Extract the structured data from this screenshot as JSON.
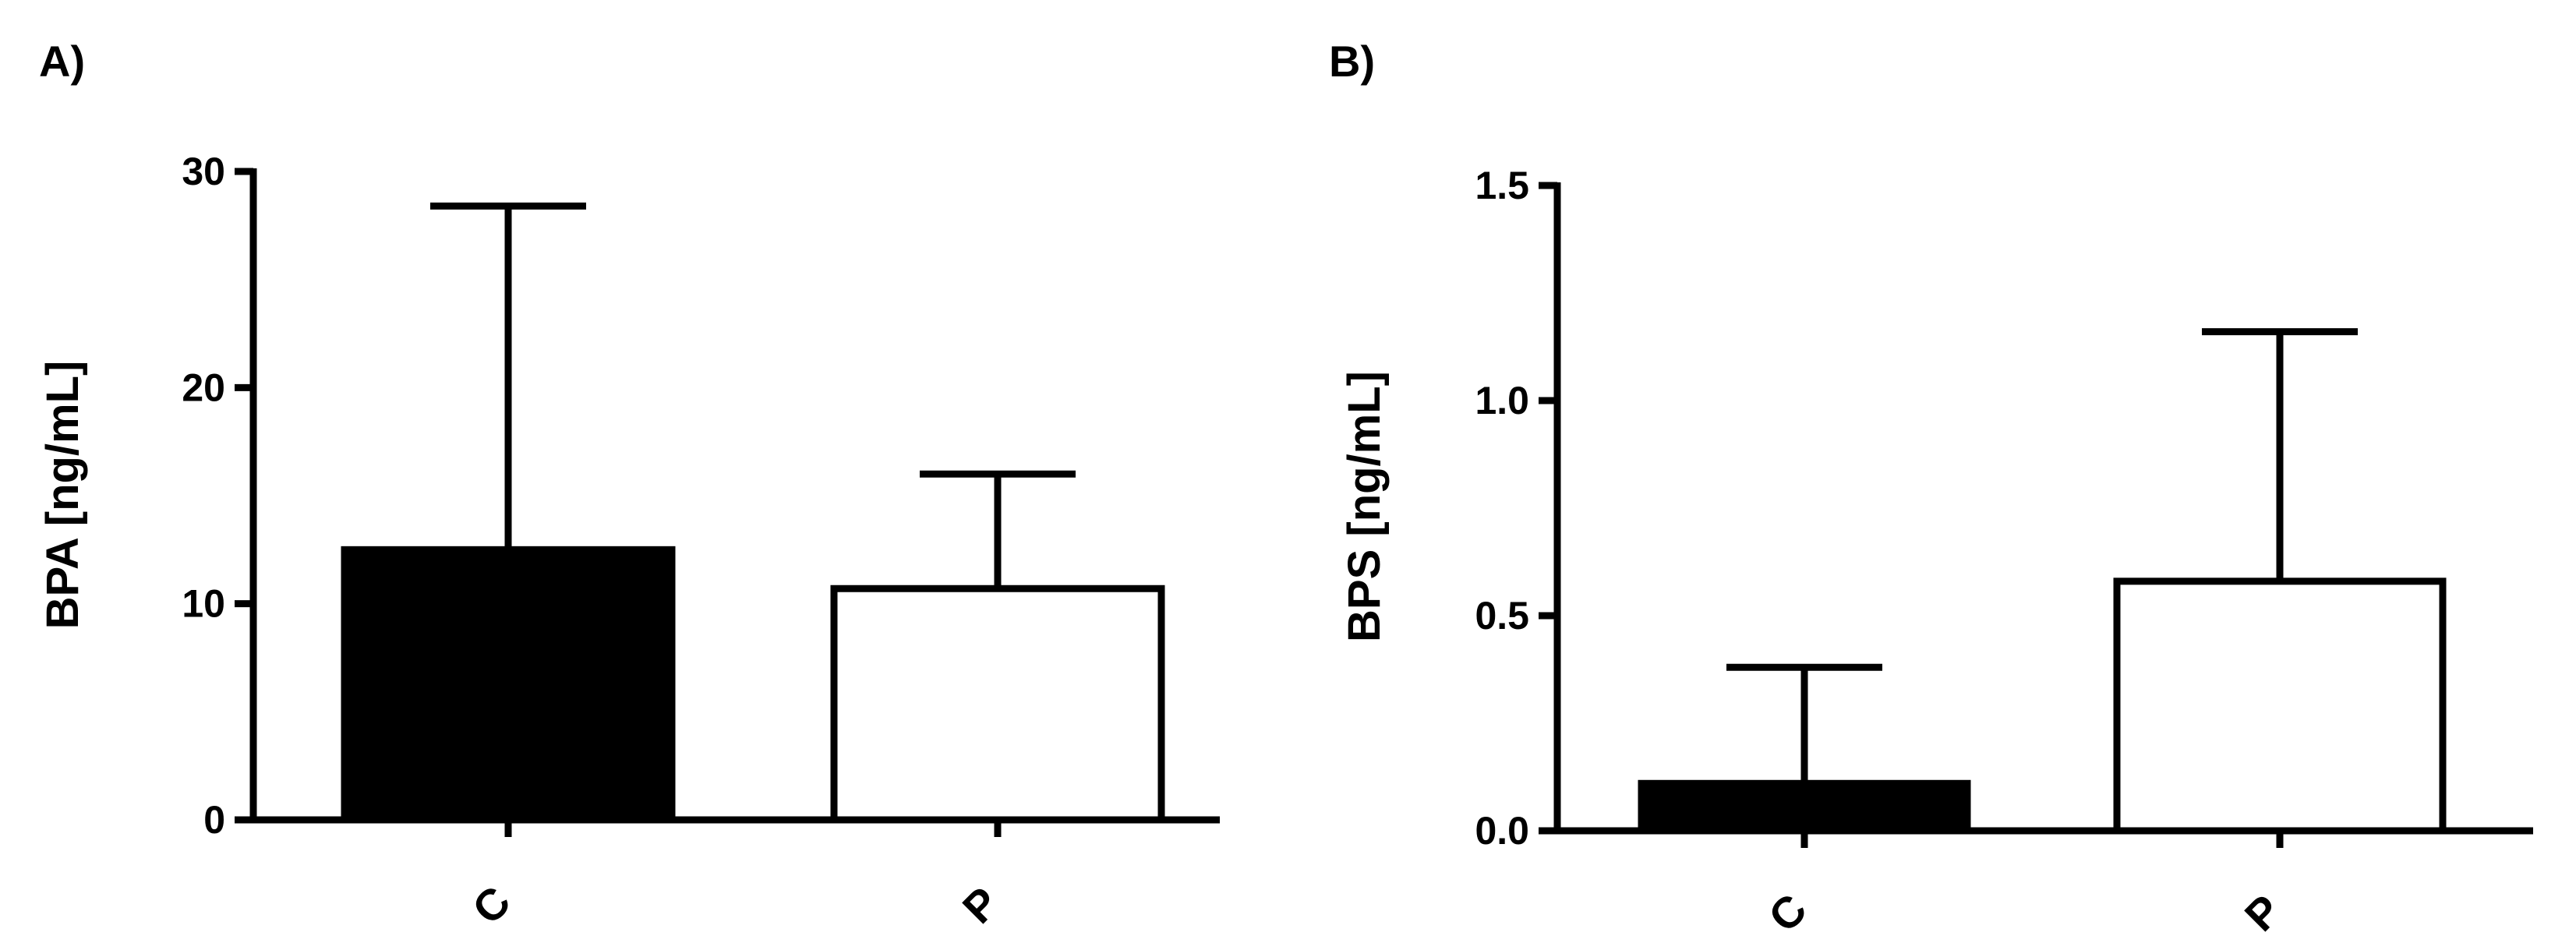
{
  "chart_data": [
    {
      "type": "bar",
      "panel_label": "A)",
      "ylabel": "BPA [ng/mL]",
      "categories": [
        "C",
        "P"
      ],
      "values": [
        12.5,
        10.7
      ],
      "error_upper": [
        28.4,
        16.0
      ],
      "bar_fill": [
        "#000000",
        "#ffffff"
      ],
      "ylim": [
        0,
        30
      ],
      "yticks": [
        0,
        10,
        20,
        30
      ],
      "ytick_labels": [
        "0",
        "10",
        "20",
        "30"
      ],
      "grid": false,
      "legend": "none"
    },
    {
      "type": "bar",
      "panel_label": "B)",
      "ylabel": "BPS [ng/mL]",
      "categories": [
        "C",
        "P"
      ],
      "values": [
        0.11,
        0.58
      ],
      "error_upper": [
        0.38,
        1.16
      ],
      "bar_fill": [
        "#000000",
        "#ffffff"
      ],
      "ylim": [
        0,
        1.5
      ],
      "yticks": [
        0,
        0.5,
        1.0,
        1.5
      ],
      "ytick_labels": [
        "0.0",
        "0.5",
        "1.0",
        "1.5"
      ],
      "grid": false,
      "legend": "none"
    }
  ]
}
